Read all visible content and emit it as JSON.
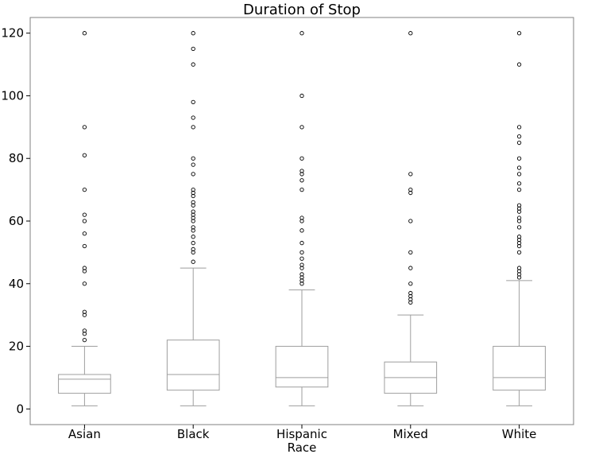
{
  "chart_data": {
    "type": "boxplot",
    "title": "Duration of Stop",
    "xlabel": "Race",
    "ylabel": "",
    "ylim": [
      -5,
      125
    ],
    "yticks": [
      0,
      20,
      40,
      60,
      80,
      100,
      120
    ],
    "grid": false,
    "categories": [
      "Asian",
      "Black",
      "Hispanic",
      "Mixed",
      "White"
    ],
    "boxes": [
      {
        "category": "Asian",
        "whisker_low": 1,
        "q1": 5,
        "median": 9.5,
        "q3": 11,
        "whisker_high": 20,
        "outliers": [
          22,
          24,
          25,
          30,
          31,
          40,
          44,
          45,
          52,
          56,
          60,
          62,
          70,
          81,
          90,
          120
        ]
      },
      {
        "category": "Black",
        "whisker_low": 1,
        "q1": 6,
        "median": 11,
        "q3": 22,
        "whisker_high": 45,
        "outliers": [
          47,
          50,
          51,
          53,
          55,
          57,
          58,
          60,
          61,
          62,
          63,
          65,
          66,
          68,
          69,
          70,
          75,
          78,
          80,
          90,
          93,
          98,
          110,
          115,
          120
        ]
      },
      {
        "category": "Hispanic",
        "whisker_low": 1,
        "q1": 7,
        "median": 10,
        "q3": 20,
        "whisker_high": 38,
        "outliers": [
          40,
          41,
          42,
          43,
          45,
          46,
          48,
          50,
          53,
          57,
          60,
          61,
          70,
          73,
          75,
          76,
          80,
          90,
          100,
          120
        ]
      },
      {
        "category": "Mixed",
        "whisker_low": 1,
        "q1": 5,
        "median": 10,
        "q3": 15,
        "whisker_high": 30,
        "outliers": [
          34,
          35,
          36,
          37,
          40,
          45,
          50,
          60,
          69,
          70,
          75,
          120
        ]
      },
      {
        "category": "White",
        "whisker_low": 1,
        "q1": 6,
        "median": 10,
        "q3": 20,
        "whisker_high": 41,
        "outliers": [
          42,
          43,
          44,
          45,
          50,
          52,
          53,
          54,
          55,
          58,
          60,
          61,
          63,
          64,
          65,
          70,
          72,
          75,
          77,
          80,
          85,
          87,
          90,
          110,
          120
        ]
      }
    ],
    "colors": {
      "box": "#9e9e9e",
      "median": "#9e9e9e",
      "outlier": "#000000",
      "frame": "#808080"
    }
  }
}
